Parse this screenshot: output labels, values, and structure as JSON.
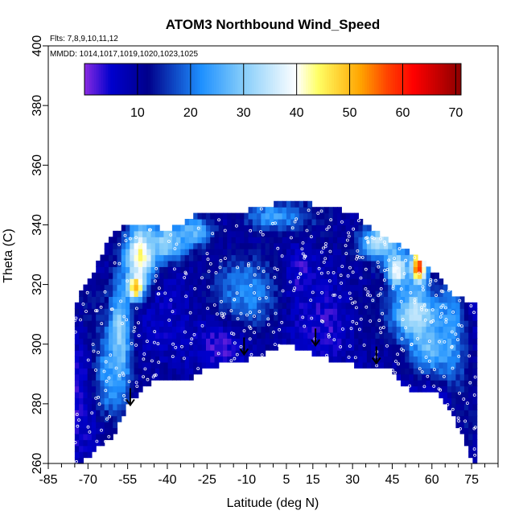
{
  "chart_data": {
    "type": "heatmap",
    "title": "ATOM3 Northbound Wind_Speed",
    "notes": {
      "flights": "Flts: 7,8,9,10,11,12",
      "dates": "MMDD: 1014,1017,1019,1020,1023,1025"
    },
    "xlabel": "Latitude (deg N)",
    "ylabel": "Theta (C)",
    "xlim": [
      -85,
      85
    ],
    "ylim": [
      260,
      400
    ],
    "x_ticks": [
      -85,
      -70,
      -55,
      -40,
      -25,
      -10,
      5,
      15,
      30,
      45,
      60,
      75
    ],
    "x_minor_ticks": [
      -80,
      -75,
      -65,
      -60,
      -50,
      -45,
      -35,
      -30,
      -20,
      -15,
      -5,
      0,
      10,
      20,
      25,
      35,
      40,
      50,
      55,
      65,
      70,
      80,
      85
    ],
    "y_ticks": [
      260,
      280,
      300,
      320,
      340,
      360,
      380,
      400
    ],
    "colorbar": {
      "ticks": [
        10,
        20,
        30,
        40,
        50,
        60,
        70
      ],
      "range": [
        0,
        71
      ],
      "colors": [
        "#8a2be2",
        "#0000cd",
        "#00008b",
        "#1e90ff",
        "#87cefa",
        "#ffffff",
        "#ffff66",
        "#ffa500",
        "#ff4500",
        "#ff0000",
        "#8b0000"
      ],
      "color_positions": [
        0,
        5,
        12,
        22,
        30,
        40,
        44,
        52,
        57,
        62,
        71
      ]
    },
    "outline": {
      "top": [
        [
          -75,
          312
        ],
        [
          -73,
          318
        ],
        [
          -68,
          323
        ],
        [
          -65,
          330
        ],
        [
          -60,
          338
        ],
        [
          -55,
          340
        ],
        [
          -45,
          340
        ],
        [
          -40,
          338
        ],
        [
          -30,
          343
        ],
        [
          -20,
          343
        ],
        [
          -10,
          345
        ],
        [
          0,
          347
        ],
        [
          10,
          348
        ],
        [
          20,
          346
        ],
        [
          30,
          344
        ],
        [
          40,
          337
        ],
        [
          50,
          332
        ],
        [
          60,
          325
        ],
        [
          65,
          320
        ],
        [
          68,
          316
        ],
        [
          70,
          316
        ],
        [
          75,
          313
        ],
        [
          77,
          313
        ]
      ],
      "bottom": [
        [
          -75,
          260
        ],
        [
          -70,
          262
        ],
        [
          -60,
          270
        ],
        [
          -55,
          280
        ],
        [
          -45,
          288
        ],
        [
          -35,
          287
        ],
        [
          -25,
          292
        ],
        [
          -15,
          294
        ],
        [
          -5,
          296
        ],
        [
          5,
          300
        ],
        [
          15,
          297
        ],
        [
          25,
          294
        ],
        [
          35,
          292
        ],
        [
          45,
          291
        ],
        [
          50,
          286
        ],
        [
          55,
          283
        ],
        [
          60,
          285
        ],
        [
          65,
          281
        ],
        [
          70,
          272
        ],
        [
          75,
          262
        ],
        [
          77,
          260
        ]
      ]
    },
    "features": [
      {
        "lat": -58,
        "theta": 302,
        "value": 34,
        "dlat": 4,
        "dtheta": 18
      },
      {
        "lat": -50,
        "theta": 330,
        "value": 44,
        "dlat": 6,
        "dtheta": 10
      },
      {
        "lat": -52,
        "theta": 319,
        "value": 52,
        "dlat": 3,
        "dtheta": 4
      },
      {
        "lat": -62,
        "theta": 290,
        "value": 24,
        "dlat": 6,
        "dtheta": 15
      },
      {
        "lat": -40,
        "theta": 334,
        "value": 32,
        "dlat": 7,
        "dtheta": 6
      },
      {
        "lat": -30,
        "theta": 338,
        "value": 28,
        "dlat": 8,
        "dtheta": 5
      },
      {
        "lat": -10,
        "theta": 318,
        "value": 22,
        "dlat": 12,
        "dtheta": 12
      },
      {
        "lat": 0,
        "theta": 343,
        "value": 24,
        "dlat": 12,
        "dtheta": 5
      },
      {
        "lat": 40,
        "theta": 334,
        "value": 34,
        "dlat": 8,
        "dtheta": 6
      },
      {
        "lat": 47,
        "theta": 325,
        "value": 40,
        "dlat": 4,
        "dtheta": 6
      },
      {
        "lat": 55,
        "theta": 326,
        "value": 60,
        "dlat": 3,
        "dtheta": 6
      },
      {
        "lat": 54,
        "theta": 310,
        "value": 38,
        "dlat": 8,
        "dtheta": 8
      },
      {
        "lat": 60,
        "theta": 300,
        "value": 30,
        "dlat": 8,
        "dtheta": 10
      },
      {
        "lat": 67,
        "theta": 305,
        "value": 24,
        "dlat": 6,
        "dtheta": 20
      },
      {
        "lat": -75,
        "theta": 285,
        "value": 4,
        "dlat": 5,
        "dtheta": 20
      },
      {
        "lat": -20,
        "theta": 300,
        "value": 3,
        "dlat": 10,
        "dtheta": 8
      },
      {
        "lat": 10,
        "theta": 325,
        "value": 4,
        "dlat": 6,
        "dtheta": 8
      },
      {
        "lat": 20,
        "theta": 305,
        "value": 4,
        "dlat": 8,
        "dtheta": 10
      },
      {
        "lat": 60,
        "theta": 280,
        "value": 4,
        "dlat": 8,
        "dtheta": 8
      }
    ],
    "arrows": [
      {
        "lat": -54,
        "theta": 282
      },
      {
        "lat": -11,
        "theta": 299
      },
      {
        "lat": 16,
        "theta": 302
      },
      {
        "lat": 39,
        "theta": 296
      }
    ]
  }
}
